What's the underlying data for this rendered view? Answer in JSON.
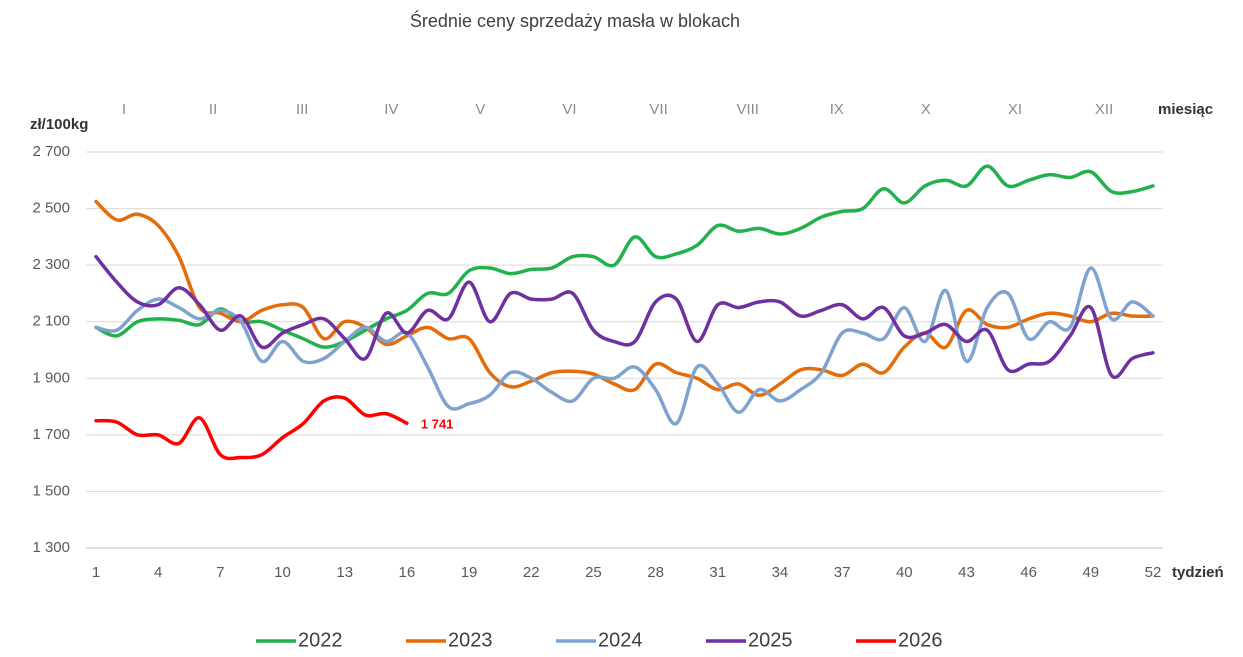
{
  "chart_data": {
    "type": "line",
    "title": "Średnie ceny sprzedaży masła w blokach",
    "y_label": "zł/100kg",
    "x_label": "tydzień",
    "months_label": "miesiąc",
    "months": [
      "I",
      "II",
      "III",
      "IV",
      "V",
      "VI",
      "VII",
      "VIII",
      "IX",
      "X",
      "XI",
      "XII"
    ],
    "x": [
      1,
      2,
      3,
      4,
      5,
      6,
      7,
      8,
      9,
      10,
      11,
      12,
      13,
      14,
      15,
      16,
      17,
      18,
      19,
      20,
      21,
      22,
      23,
      24,
      25,
      26,
      27,
      28,
      29,
      30,
      31,
      32,
      33,
      34,
      35,
      36,
      37,
      38,
      39,
      40,
      41,
      42,
      43,
      44,
      45,
      46,
      47,
      48,
      49,
      50,
      51,
      52
    ],
    "xlim": [
      1,
      52
    ],
    "xticks": [
      1,
      4,
      7,
      10,
      13,
      16,
      19,
      22,
      25,
      28,
      31,
      34,
      37,
      40,
      43,
      46,
      49,
      52
    ],
    "ylim": [
      1300,
      2700
    ],
    "yticks": [
      {
        "value": 1300,
        "label": "1 300"
      },
      {
        "value": 1500,
        "label": "1 500"
      },
      {
        "value": 1700,
        "label": "1 700"
      },
      {
        "value": 1900,
        "label": "1 900"
      },
      {
        "value": 2100,
        "label": "2 100"
      },
      {
        "value": 2300,
        "label": "2 300"
      },
      {
        "value": 2500,
        "label": "2 500"
      },
      {
        "value": 2700,
        "label": "2 700"
      }
    ],
    "grid": true,
    "legend": "bottom",
    "series": [
      {
        "name": "2022",
        "color": "#22b14c",
        "values": [
          2080,
          2050,
          2100,
          2110,
          2105,
          2090,
          2145,
          2100,
          2100,
          2070,
          2040,
          2010,
          2030,
          2070,
          2110,
          2140,
          2200,
          2200,
          2280,
          2290,
          2270,
          2285,
          2290,
          2330,
          2330,
          2300,
          2400,
          2330,
          2340,
          2370,
          2440,
          2420,
          2430,
          2410,
          2430,
          2470,
          2490,
          2500,
          2570,
          2520,
          2580,
          2600,
          2580,
          2650,
          2580,
          2600,
          2620,
          2610,
          2630,
          2560,
          2560,
          2580
        ]
      },
      {
        "name": "2023",
        "color": "#e46c0a",
        "values": [
          2525,
          2460,
          2480,
          2440,
          2330,
          2150,
          2130,
          2100,
          2140,
          2160,
          2150,
          2040,
          2100,
          2080,
          2020,
          2050,
          2080,
          2040,
          2040,
          1920,
          1870,
          1890,
          1920,
          1925,
          1915,
          1880,
          1860,
          1950,
          1920,
          1900,
          1860,
          1880,
          1840,
          1880,
          1930,
          1930,
          1910,
          1950,
          1920,
          2010,
          2060,
          2010,
          2140,
          2090,
          2080,
          2110,
          2130,
          2120,
          2100,
          2130,
          2120,
          2120
        ]
      },
      {
        "name": "2024",
        "color": "#7fa3cf",
        "values": [
          2080,
          2070,
          2140,
          2180,
          2150,
          2110,
          2140,
          2100,
          1960,
          2030,
          1960,
          1970,
          2030,
          2080,
          2030,
          2060,
          1940,
          1800,
          1810,
          1840,
          1920,
          1900,
          1850,
          1820,
          1900,
          1900,
          1940,
          1860,
          1740,
          1940,
          1880,
          1780,
          1860,
          1820,
          1860,
          1920,
          2060,
          2060,
          2040,
          2150,
          2030,
          2210,
          1960,
          2150,
          2200,
          2040,
          2100,
          2080,
          2290,
          2110,
          2170,
          2120
        ]
      },
      {
        "name": "2025",
        "color": "#7030a0",
        "values": [
          2330,
          2240,
          2170,
          2160,
          2220,
          2160,
          2070,
          2120,
          2010,
          2060,
          2090,
          2110,
          2040,
          1970,
          2130,
          2060,
          2140,
          2110,
          2240,
          2100,
          2200,
          2180,
          2180,
          2200,
          2070,
          2030,
          2030,
          2170,
          2180,
          2030,
          2160,
          2150,
          2170,
          2170,
          2120,
          2140,
          2160,
          2110,
          2150,
          2050,
          2060,
          2090,
          2030,
          2070,
          1930,
          1950,
          1960,
          2050,
          2150,
          1910,
          1970,
          1990
        ]
      },
      {
        "name": "2026",
        "color": "#ff0000",
        "values": [
          1750,
          1745,
          1700,
          1700,
          1670,
          1760,
          1630,
          1620,
          1630,
          1690,
          1740,
          1820,
          1830,
          1770,
          1775,
          1741,
          null,
          null,
          null,
          null,
          null,
          null,
          null,
          null,
          null,
          null,
          null,
          null,
          null,
          null,
          null,
          null,
          null,
          null,
          null,
          null,
          null,
          null,
          null,
          null,
          null,
          null,
          null,
          null,
          null,
          null,
          null,
          null,
          null,
          null,
          null,
          null
        ],
        "value_labels": [
          null,
          null,
          null,
          null,
          null,
          null,
          null,
          null,
          null,
          null,
          null,
          null,
          null,
          null,
          null,
          "1 741",
          null,
          null,
          null,
          null,
          null,
          null,
          null,
          null,
          null,
          null,
          null,
          null,
          null,
          null,
          null,
          null,
          null,
          null,
          null,
          null,
          null,
          null,
          null,
          null,
          null,
          null,
          null,
          null,
          null,
          null,
          null,
          null,
          null,
          null,
          null,
          null
        ]
      }
    ]
  }
}
